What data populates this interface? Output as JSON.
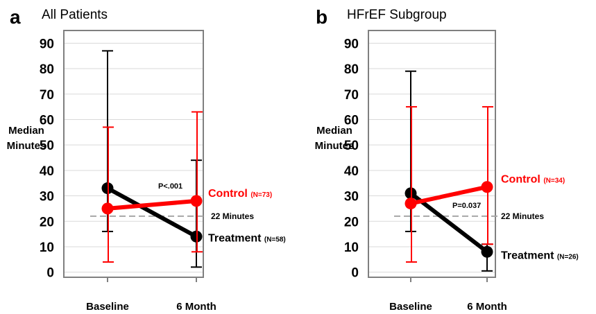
{
  "colors": {
    "control": "#ff0000",
    "treatment": "#000000",
    "grid": "#d9d9d9",
    "frame": "#7f7f7f",
    "reference": "#a6a6a6"
  },
  "chart_data": [
    {
      "type": "line",
      "panel": "a",
      "title": "All Patients",
      "ylabel": [
        "Median",
        "Minutes"
      ],
      "ylim": [
        -2,
        95
      ],
      "yticks": [
        0,
        10,
        20,
        30,
        40,
        50,
        60,
        70,
        80,
        90
      ],
      "grid": true,
      "categories": [
        "Baseline",
        "6 Month"
      ],
      "series": [
        {
          "name": "Treatment",
          "n": "(N=58)",
          "color": "#000000",
          "values": [
            33,
            14
          ],
          "err_low": [
            16,
            2
          ],
          "err_high": [
            87,
            44
          ]
        },
        {
          "name": "Control",
          "n": "(N=73)",
          "color": "#ff0000",
          "values": [
            25,
            28
          ],
          "err_low": [
            4,
            8
          ],
          "err_high": [
            57,
            63
          ]
        }
      ],
      "reference_line": {
        "value": 22,
        "label": "22 Minutes"
      },
      "annotation": {
        "text": "P<.001"
      }
    },
    {
      "type": "line",
      "panel": "b",
      "title": "HFrEF Subgroup",
      "ylabel": [
        "Median",
        "Minutes"
      ],
      "ylim": [
        -2,
        95
      ],
      "yticks": [
        0,
        10,
        20,
        30,
        40,
        50,
        60,
        70,
        80,
        90
      ],
      "grid": true,
      "categories": [
        "Baseline",
        "6 Month"
      ],
      "series": [
        {
          "name": "Treatment",
          "n": "(N=26)",
          "color": "#000000",
          "values": [
            31,
            8
          ],
          "err_low": [
            16,
            0.5
          ],
          "err_high": [
            79,
            11
          ]
        },
        {
          "name": "Control",
          "n": "(N=34)",
          "color": "#ff0000",
          "values": [
            27,
            33.5
          ],
          "err_low": [
            4,
            11
          ],
          "err_high": [
            65,
            65
          ]
        }
      ],
      "reference_line": {
        "value": 22,
        "label": "22 Minutes"
      },
      "annotation": {
        "text": "P=0.037"
      }
    }
  ]
}
